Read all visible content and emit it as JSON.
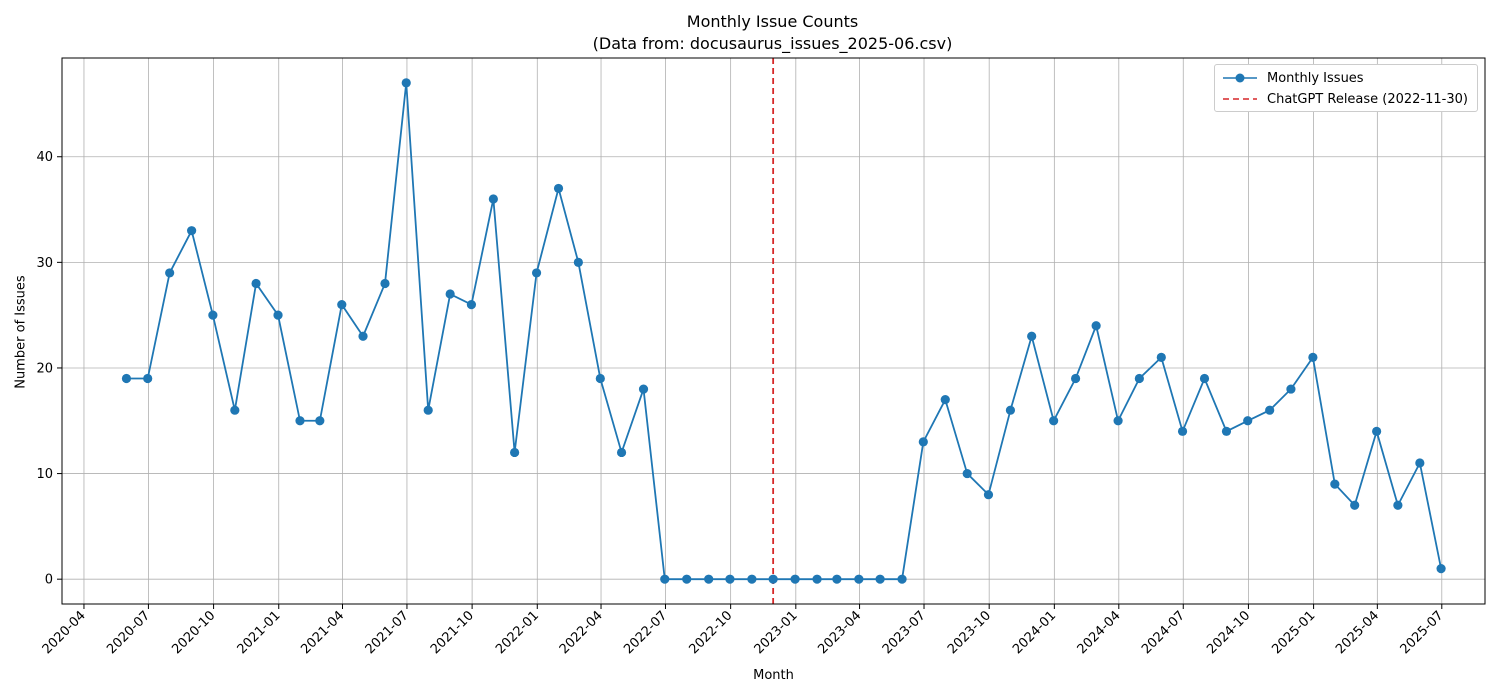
{
  "chart_data": {
    "type": "line",
    "title": "Monthly Issue Counts",
    "subtitle": "(Data from: docusaurus_issues_2025-06.csv)",
    "xlabel": "Month",
    "ylabel": "Number of Issues",
    "x_ticks": [
      "2020-04",
      "2020-07",
      "2020-10",
      "2021-01",
      "2021-04",
      "2021-07",
      "2021-10",
      "2022-01",
      "2022-04",
      "2022-07",
      "2022-10",
      "2023-01",
      "2023-04",
      "2023-07",
      "2023-10",
      "2024-01",
      "2024-04",
      "2024-07",
      "2024-10",
      "2025-01",
      "2025-04",
      "2025-07"
    ],
    "y_ticks": [
      0,
      10,
      20,
      30,
      40
    ],
    "ylim": [
      -2.35,
      49.35
    ],
    "xlim": [
      "2020-03-01",
      "2025-08-31"
    ],
    "grid": true,
    "legend_position": "top-right",
    "series": [
      {
        "name": "Monthly Issues",
        "color": "#1f77b4",
        "marker": "circle",
        "x": [
          "2020-05-31",
          "2020-06-30",
          "2020-07-31",
          "2020-08-31",
          "2020-09-30",
          "2020-10-31",
          "2020-11-30",
          "2020-12-31",
          "2021-01-31",
          "2021-02-28",
          "2021-03-31",
          "2021-04-30",
          "2021-05-31",
          "2021-06-30",
          "2021-07-31",
          "2021-08-31",
          "2021-09-30",
          "2021-10-31",
          "2021-11-30",
          "2021-12-31",
          "2022-01-31",
          "2022-02-28",
          "2022-03-31",
          "2022-04-30",
          "2022-05-31",
          "2022-06-30",
          "2022-07-31",
          "2022-08-31",
          "2022-09-30",
          "2022-10-31",
          "2022-11-30",
          "2022-12-31",
          "2023-01-31",
          "2023-02-28",
          "2023-03-31",
          "2023-04-30",
          "2023-05-31",
          "2023-06-30",
          "2023-07-31",
          "2023-08-31",
          "2023-09-30",
          "2023-10-31",
          "2023-11-30",
          "2023-12-31",
          "2024-01-31",
          "2024-02-29",
          "2024-03-31",
          "2024-04-30",
          "2024-05-31",
          "2024-06-30",
          "2024-07-31",
          "2024-08-31",
          "2024-09-30",
          "2024-10-31",
          "2024-11-30",
          "2024-12-31",
          "2025-01-31",
          "2025-02-28",
          "2025-03-31",
          "2025-04-30",
          "2025-05-31",
          "2025-06-30"
        ],
        "values": [
          19,
          19,
          29,
          33,
          25,
          16,
          28,
          25,
          15,
          15,
          26,
          23,
          28,
          47,
          16,
          27,
          26,
          36,
          12,
          29,
          37,
          30,
          19,
          12,
          18,
          0,
          0,
          0,
          0,
          0,
          0,
          0,
          0,
          0,
          0,
          0,
          0,
          13,
          17,
          10,
          8,
          16,
          23,
          15,
          19,
          24,
          15,
          19,
          21,
          14,
          19,
          14,
          15,
          16,
          18,
          21,
          9,
          7,
          14,
          7,
          11,
          1
        ]
      }
    ],
    "reference_line": {
      "name": "ChatGPT Release (2022-11-30)",
      "x": "2022-11-30",
      "color": "#d62728",
      "style": "dashed"
    }
  }
}
